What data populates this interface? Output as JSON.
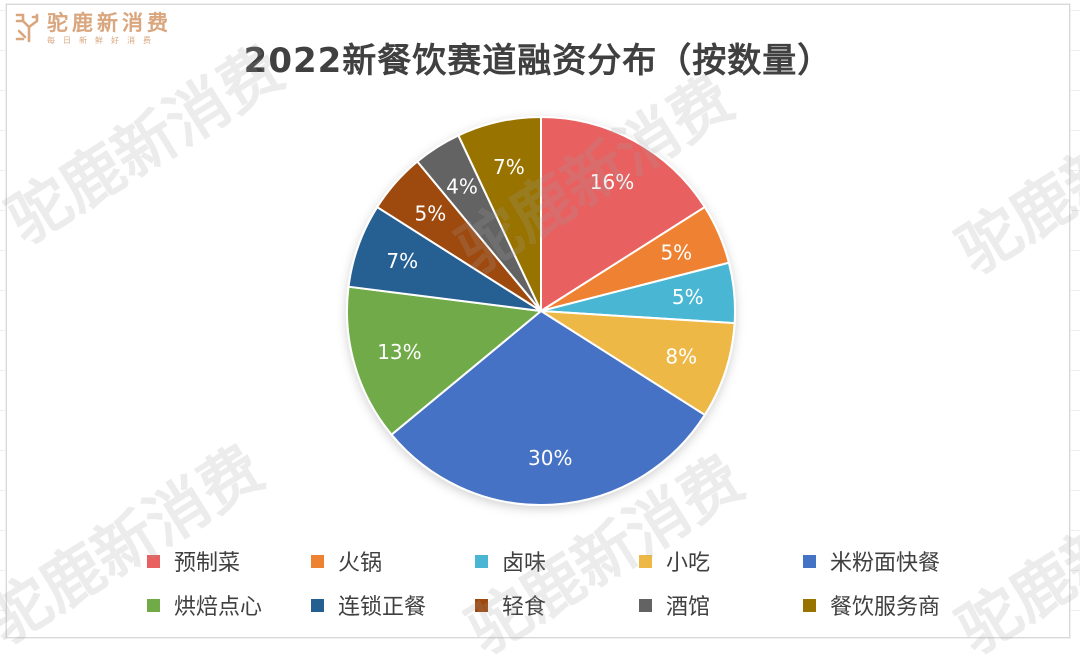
{
  "brand": {
    "name": "驼鹿新消费",
    "tagline": "每日新鲜好消费"
  },
  "watermark_text": "驼鹿新消费",
  "chart_data": {
    "type": "pie",
    "title": "2022新餐饮赛道融资分布（按数量）",
    "labels": [
      "预制菜",
      "火锅",
      "卤味",
      "小吃",
      "米粉面快餐",
      "烘焙点心",
      "连锁正餐",
      "轻食",
      "酒馆",
      "餐饮服务商"
    ],
    "values": [
      16,
      5,
      5,
      8,
      30,
      13,
      7,
      5,
      4,
      7
    ],
    "value_labels": [
      "16%",
      "5%",
      "5%",
      "8%",
      "30%",
      "13%",
      "7%",
      "5%",
      "4%",
      "7%"
    ],
    "unit": "%",
    "colors": [
      "#e8605f",
      "#ee8233",
      "#4ab6d4",
      "#eeb847",
      "#4472c4",
      "#71ab48",
      "#255e91",
      "#9e480e",
      "#636363",
      "#997300"
    ],
    "start_angle": "12 o'clock",
    "direction": "clockwise",
    "legend_position": "bottom"
  }
}
